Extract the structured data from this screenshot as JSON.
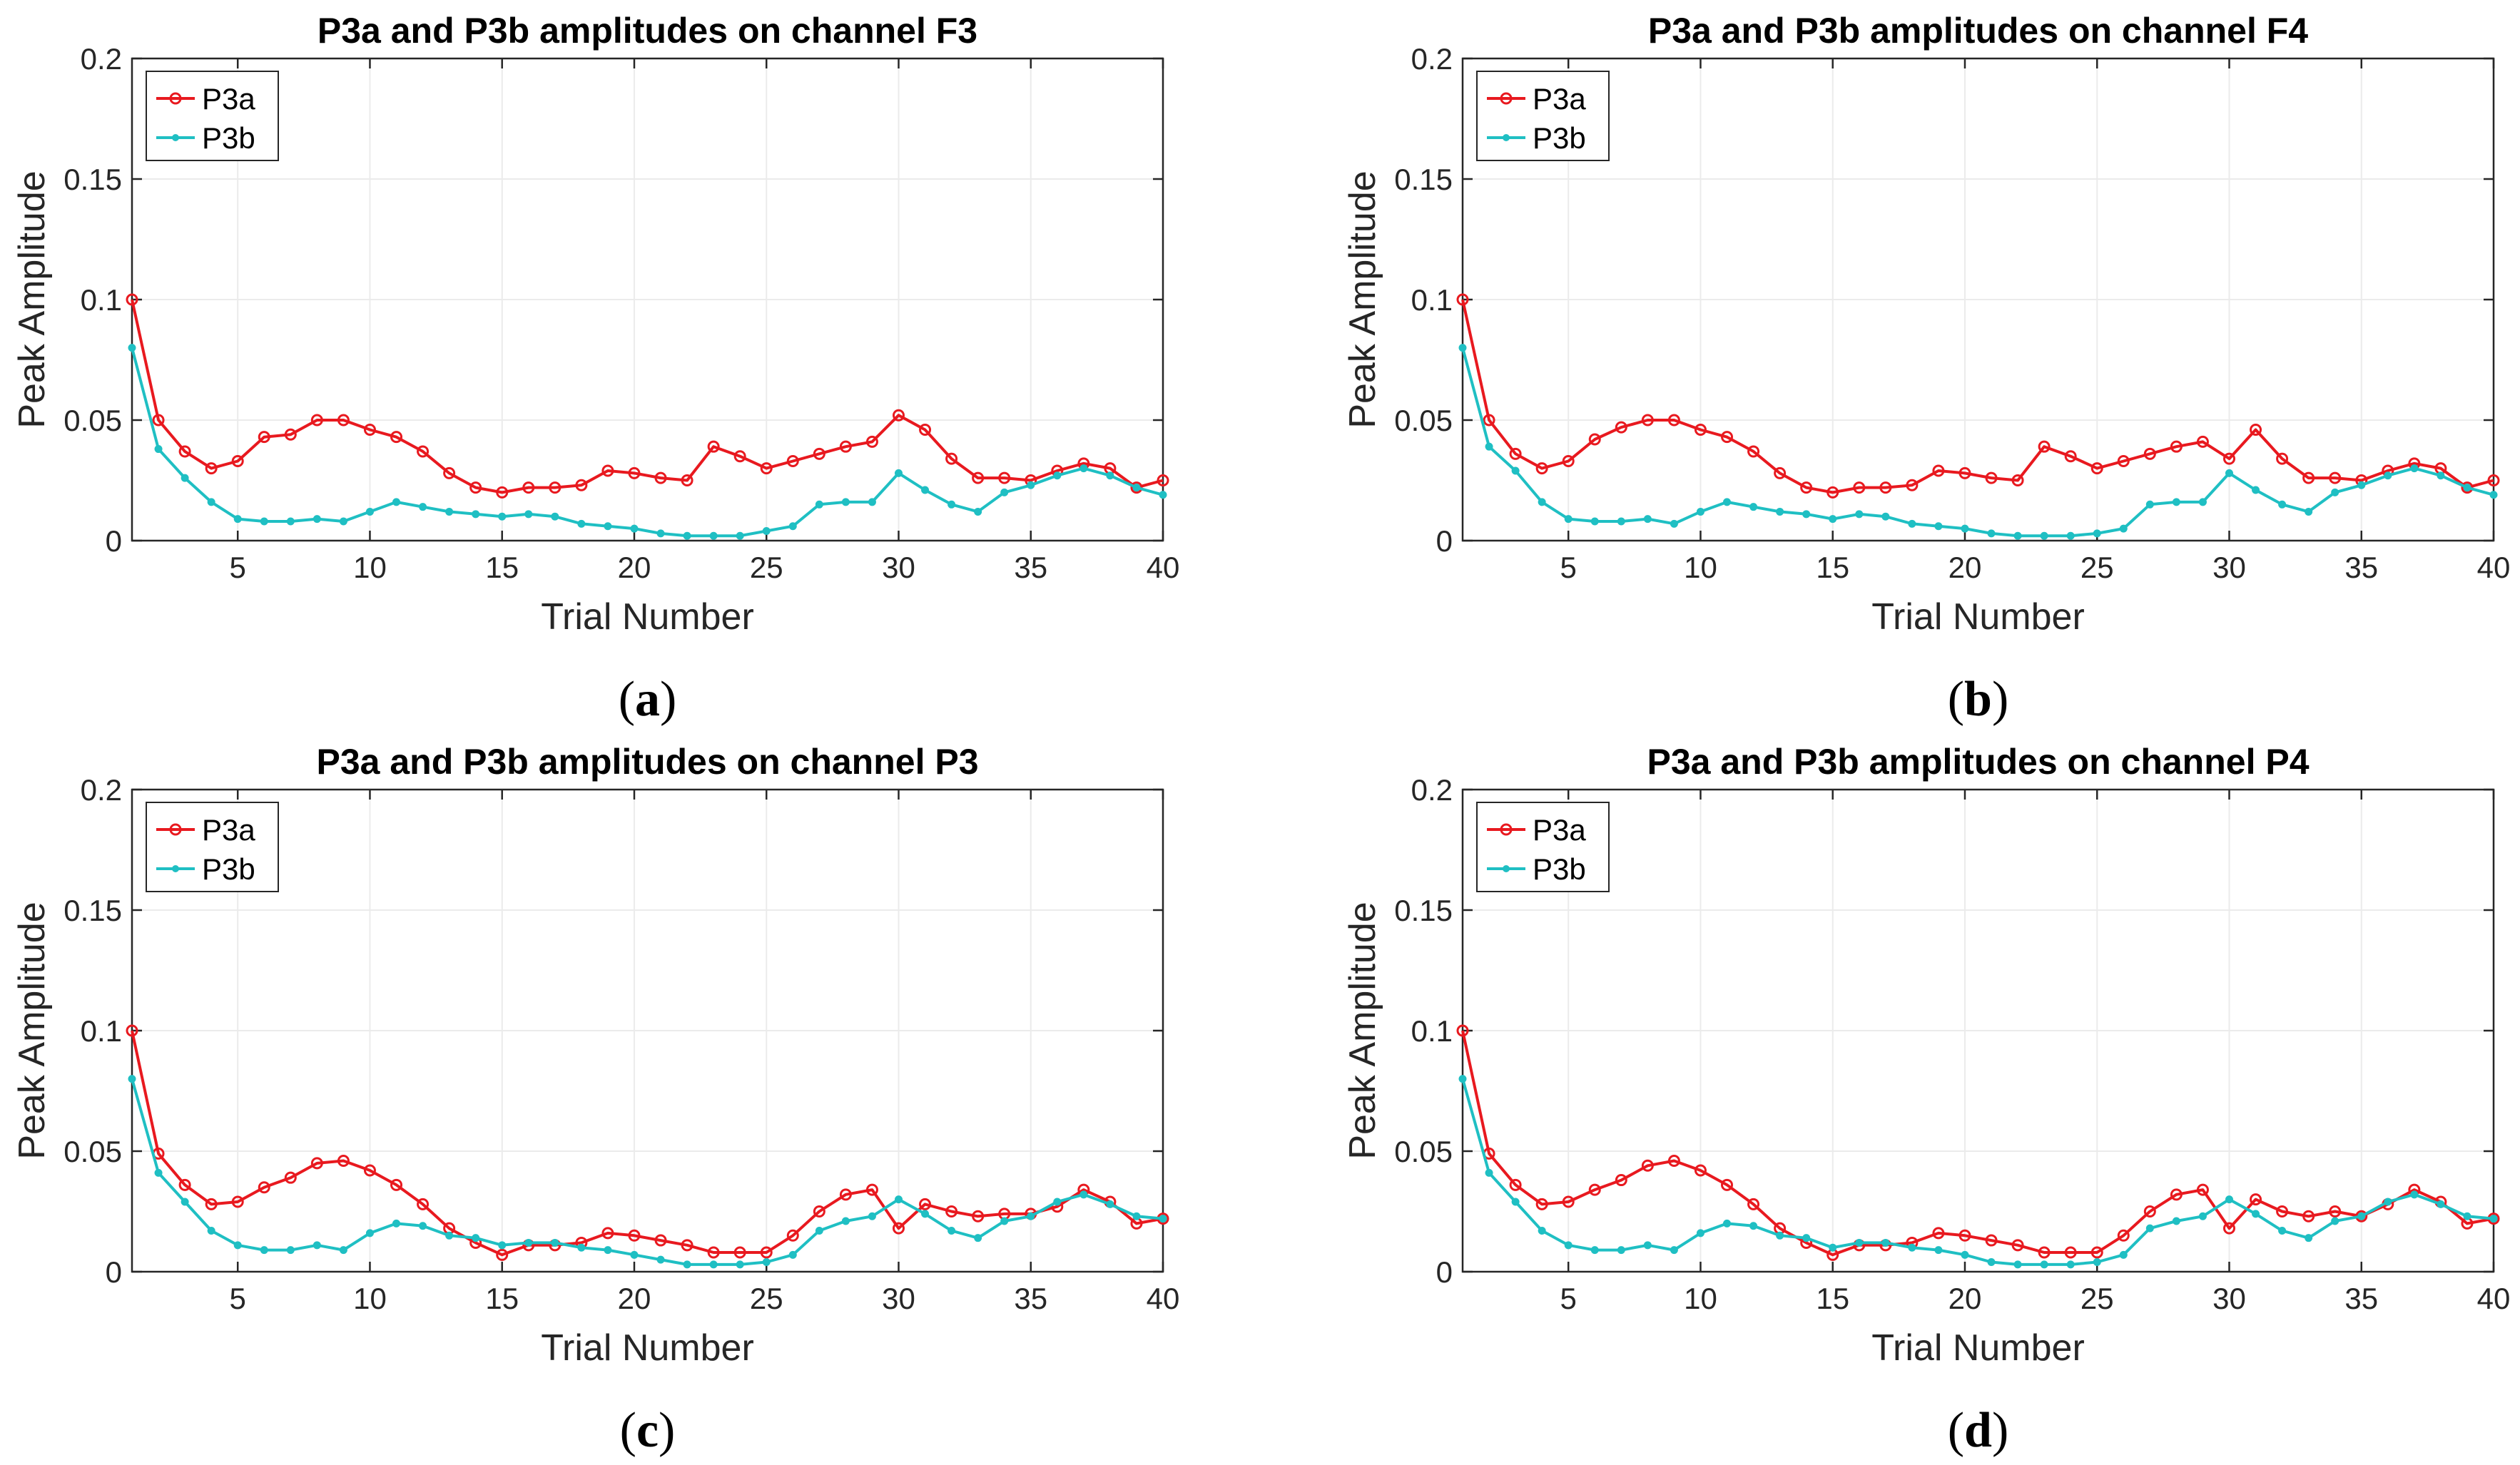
{
  "chart_data": [
    {
      "type": "line",
      "panel": "(a)",
      "title": "P3a and P3b amplitudes on channel F3",
      "xlabel": "Trial Number",
      "ylabel": "Peak Amplitude",
      "xlim": [
        1,
        40
      ],
      "ylim": [
        0,
        0.2
      ],
      "xticks": [
        5,
        10,
        15,
        20,
        25,
        30,
        35,
        40
      ],
      "yticks": [
        0,
        0.05,
        0.1,
        0.15,
        0.2
      ],
      "ytick_labels": [
        "0",
        "0.05",
        "0.1",
        "0.15",
        "0.2"
      ],
      "grid": true,
      "legend": "top-left",
      "x": [
        1,
        2,
        3,
        4,
        5,
        6,
        7,
        8,
        9,
        10,
        11,
        12,
        13,
        14,
        15,
        16,
        17,
        18,
        19,
        20,
        21,
        22,
        23,
        24,
        25,
        26,
        27,
        28,
        29,
        30,
        31,
        32,
        33,
        34,
        35,
        36,
        37,
        38,
        39,
        40
      ],
      "series": [
        {
          "name": "P3a",
          "color": "#e8191f",
          "values": [
            0.1,
            0.05,
            0.037,
            0.03,
            0.033,
            0.043,
            0.044,
            0.05,
            0.05,
            0.046,
            0.043,
            0.037,
            0.028,
            0.022,
            0.02,
            0.022,
            0.022,
            0.023,
            0.029,
            0.028,
            0.026,
            0.025,
            0.039,
            0.035,
            0.03,
            0.033,
            0.036,
            0.039,
            0.041,
            0.052,
            0.046,
            0.034,
            0.026,
            0.026,
            0.025,
            0.029,
            0.032,
            0.03,
            0.022,
            0.025
          ]
        },
        {
          "name": "P3b",
          "color": "#1fbfc3",
          "values": [
            0.08,
            0.038,
            0.026,
            0.016,
            0.009,
            0.008,
            0.008,
            0.009,
            0.008,
            0.012,
            0.016,
            0.014,
            0.012,
            0.011,
            0.01,
            0.011,
            0.01,
            0.007,
            0.006,
            0.005,
            0.003,
            0.002,
            0.002,
            0.002,
            0.004,
            0.006,
            0.015,
            0.016,
            0.016,
            0.028,
            0.021,
            0.015,
            0.012,
            0.02,
            0.023,
            0.027,
            0.03,
            0.027,
            0.022,
            0.019
          ]
        }
      ]
    },
    {
      "type": "line",
      "panel": "(b)",
      "title": "P3a and P3b amplitudes on channel F4",
      "xlabel": "Trial Number",
      "ylabel": "Peak Amplitude",
      "xlim": [
        1,
        40
      ],
      "ylim": [
        0,
        0.2
      ],
      "xticks": [
        5,
        10,
        15,
        20,
        25,
        30,
        35,
        40
      ],
      "yticks": [
        0,
        0.05,
        0.1,
        0.15,
        0.2
      ],
      "ytick_labels": [
        "0",
        "0.05",
        "0.1",
        "0.15",
        "0.2"
      ],
      "grid": true,
      "legend": "top-left",
      "x": [
        1,
        2,
        3,
        4,
        5,
        6,
        7,
        8,
        9,
        10,
        11,
        12,
        13,
        14,
        15,
        16,
        17,
        18,
        19,
        20,
        21,
        22,
        23,
        24,
        25,
        26,
        27,
        28,
        29,
        30,
        31,
        32,
        33,
        34,
        35,
        36,
        37,
        38,
        39,
        40
      ],
      "series": [
        {
          "name": "P3a",
          "color": "#e8191f",
          "values": [
            0.1,
            0.05,
            0.036,
            0.03,
            0.033,
            0.042,
            0.047,
            0.05,
            0.05,
            0.046,
            0.043,
            0.037,
            0.028,
            0.022,
            0.02,
            0.022,
            0.022,
            0.023,
            0.029,
            0.028,
            0.026,
            0.025,
            0.039,
            0.035,
            0.03,
            0.033,
            0.036,
            0.039,
            0.041,
            0.034,
            0.046,
            0.034,
            0.026,
            0.026,
            0.025,
            0.029,
            0.032,
            0.03,
            0.022,
            0.025
          ]
        },
        {
          "name": "P3b",
          "color": "#1fbfc3",
          "values": [
            0.08,
            0.039,
            0.029,
            0.016,
            0.009,
            0.008,
            0.008,
            0.009,
            0.007,
            0.012,
            0.016,
            0.014,
            0.012,
            0.011,
            0.009,
            0.011,
            0.01,
            0.007,
            0.006,
            0.005,
            0.003,
            0.002,
            0.002,
            0.002,
            0.003,
            0.005,
            0.015,
            0.016,
            0.016,
            0.028,
            0.021,
            0.015,
            0.012,
            0.02,
            0.023,
            0.027,
            0.03,
            0.027,
            0.022,
            0.019
          ]
        }
      ]
    },
    {
      "type": "line",
      "panel": "(c)",
      "title": "P3a and P3b amplitudes on channel P3",
      "xlabel": "Trial Number",
      "ylabel": "Peak Amplitude",
      "xlim": [
        1,
        40
      ],
      "ylim": [
        0,
        0.2
      ],
      "xticks": [
        5,
        10,
        15,
        20,
        25,
        30,
        35,
        40
      ],
      "yticks": [
        0,
        0.05,
        0.1,
        0.15,
        0.2
      ],
      "ytick_labels": [
        "0",
        "0.05",
        "0.1",
        "0.15",
        "0.2"
      ],
      "grid": true,
      "legend": "top-left",
      "x": [
        1,
        2,
        3,
        4,
        5,
        6,
        7,
        8,
        9,
        10,
        11,
        12,
        13,
        14,
        15,
        16,
        17,
        18,
        19,
        20,
        21,
        22,
        23,
        24,
        25,
        26,
        27,
        28,
        29,
        30,
        31,
        32,
        33,
        34,
        35,
        36,
        37,
        38,
        39,
        40
      ],
      "series": [
        {
          "name": "P3a",
          "color": "#e8191f",
          "values": [
            0.1,
            0.049,
            0.036,
            0.028,
            0.029,
            0.035,
            0.039,
            0.045,
            0.046,
            0.042,
            0.036,
            0.028,
            0.018,
            0.012,
            0.007,
            0.011,
            0.011,
            0.012,
            0.016,
            0.015,
            0.013,
            0.011,
            0.008,
            0.008,
            0.008,
            0.015,
            0.025,
            0.032,
            0.034,
            0.018,
            0.028,
            0.025,
            0.023,
            0.024,
            0.024,
            0.027,
            0.034,
            0.029,
            0.02,
            0.022
          ]
        },
        {
          "name": "P3b",
          "color": "#1fbfc3",
          "values": [
            0.08,
            0.041,
            0.029,
            0.017,
            0.011,
            0.009,
            0.009,
            0.011,
            0.009,
            0.016,
            0.02,
            0.019,
            0.015,
            0.014,
            0.011,
            0.012,
            0.012,
            0.01,
            0.009,
            0.007,
            0.005,
            0.003,
            0.003,
            0.003,
            0.004,
            0.007,
            0.017,
            0.021,
            0.023,
            0.03,
            0.024,
            0.017,
            0.014,
            0.021,
            0.023,
            0.029,
            0.032,
            0.028,
            0.023,
            0.022
          ]
        }
      ]
    },
    {
      "type": "line",
      "panel": "(d)",
      "title": "P3a and P3b amplitudes on channel P4",
      "xlabel": "Trial Number",
      "ylabel": "Peak Amplitude",
      "xlim": [
        1,
        40
      ],
      "ylim": [
        0,
        0.2
      ],
      "xticks": [
        5,
        10,
        15,
        20,
        25,
        30,
        35,
        40
      ],
      "yticks": [
        0,
        0.05,
        0.1,
        0.15,
        0.2
      ],
      "ytick_labels": [
        "0",
        "0.05",
        "0.1",
        "0.15",
        "0.2"
      ],
      "grid": true,
      "legend": "top-left",
      "x": [
        1,
        2,
        3,
        4,
        5,
        6,
        7,
        8,
        9,
        10,
        11,
        12,
        13,
        14,
        15,
        16,
        17,
        18,
        19,
        20,
        21,
        22,
        23,
        24,
        25,
        26,
        27,
        28,
        29,
        30,
        31,
        32,
        33,
        34,
        35,
        36,
        37,
        38,
        39,
        40
      ],
      "series": [
        {
          "name": "P3a",
          "color": "#e8191f",
          "values": [
            0.1,
            0.049,
            0.036,
            0.028,
            0.029,
            0.034,
            0.038,
            0.044,
            0.046,
            0.042,
            0.036,
            0.028,
            0.018,
            0.012,
            0.007,
            0.011,
            0.011,
            0.012,
            0.016,
            0.015,
            0.013,
            0.011,
            0.008,
            0.008,
            0.008,
            0.015,
            0.025,
            0.032,
            0.034,
            0.018,
            0.03,
            0.025,
            0.023,
            0.025,
            0.023,
            0.028,
            0.034,
            0.029,
            0.02,
            0.022
          ]
        },
        {
          "name": "P3b",
          "color": "#1fbfc3",
          "values": [
            0.08,
            0.041,
            0.029,
            0.017,
            0.011,
            0.009,
            0.009,
            0.011,
            0.009,
            0.016,
            0.02,
            0.019,
            0.015,
            0.014,
            0.01,
            0.012,
            0.012,
            0.01,
            0.009,
            0.007,
            0.004,
            0.003,
            0.003,
            0.003,
            0.004,
            0.007,
            0.018,
            0.021,
            0.023,
            0.03,
            0.024,
            0.017,
            0.014,
            0.021,
            0.023,
            0.029,
            0.032,
            0.028,
            0.023,
            0.022
          ]
        }
      ]
    }
  ]
}
